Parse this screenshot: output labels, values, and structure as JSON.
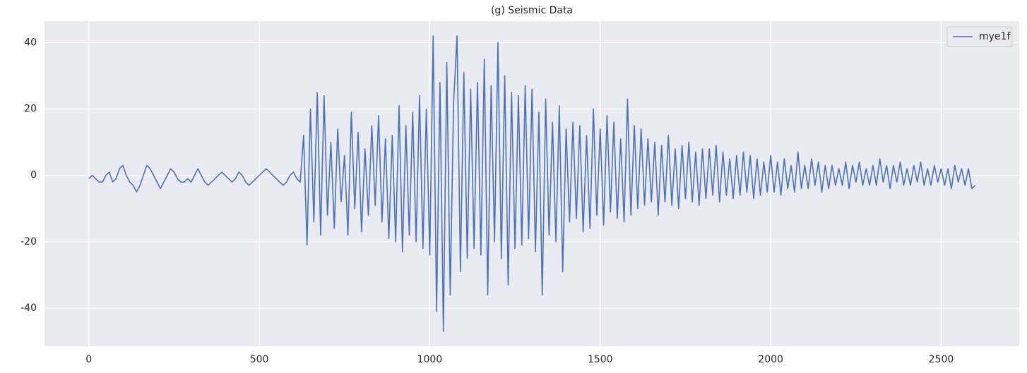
{
  "chart_data": {
    "type": "line",
    "title": "(g) Seismic Data",
    "x": [
      0,
      10,
      20,
      30,
      40,
      50,
      60,
      70,
      80,
      90,
      100,
      110,
      120,
      130,
      140,
      150,
      160,
      170,
      180,
      190,
      200,
      210,
      220,
      230,
      240,
      250,
      260,
      270,
      280,
      290,
      300,
      310,
      320,
      330,
      340,
      350,
      360,
      370,
      380,
      390,
      400,
      410,
      420,
      430,
      440,
      450,
      460,
      470,
      480,
      490,
      500,
      510,
      520,
      530,
      540,
      550,
      560,
      570,
      580,
      590,
      600,
      610,
      620,
      630,
      640,
      650,
      660,
      670,
      680,
      690,
      700,
      710,
      720,
      730,
      740,
      750,
      760,
      770,
      780,
      790,
      800,
      810,
      820,
      830,
      840,
      850,
      860,
      870,
      880,
      890,
      900,
      910,
      920,
      930,
      940,
      950,
      960,
      970,
      980,
      990,
      1000,
      1010,
      1020,
      1030,
      1040,
      1050,
      1060,
      1070,
      1080,
      1090,
      1100,
      1110,
      1120,
      1130,
      1140,
      1150,
      1160,
      1170,
      1180,
      1190,
      1200,
      1210,
      1220,
      1230,
      1240,
      1250,
      1260,
      1270,
      1280,
      1290,
      1300,
      1310,
      1320,
      1330,
      1340,
      1350,
      1360,
      1370,
      1380,
      1390,
      1400,
      1410,
      1420,
      1430,
      1440,
      1450,
      1460,
      1470,
      1480,
      1490,
      1500,
      1510,
      1520,
      1530,
      1540,
      1550,
      1560,
      1570,
      1580,
      1590,
      1600,
      1610,
      1620,
      1630,
      1640,
      1650,
      1660,
      1670,
      1680,
      1690,
      1700,
      1710,
      1720,
      1730,
      1740,
      1750,
      1760,
      1770,
      1780,
      1790,
      1800,
      1810,
      1820,
      1830,
      1840,
      1850,
      1860,
      1870,
      1880,
      1890,
      1900,
      1910,
      1920,
      1930,
      1940,
      1950,
      1960,
      1970,
      1980,
      1990,
      2000,
      2010,
      2020,
      2030,
      2040,
      2050,
      2060,
      2070,
      2080,
      2090,
      2100,
      2110,
      2120,
      2130,
      2140,
      2150,
      2160,
      2170,
      2180,
      2190,
      2200,
      2210,
      2220,
      2230,
      2240,
      2250,
      2260,
      2270,
      2280,
      2290,
      2300,
      2310,
      2320,
      2330,
      2340,
      2350,
      2360,
      2370,
      2380,
      2390,
      2400,
      2410,
      2420,
      2430,
      2440,
      2450,
      2460,
      2470,
      2480,
      2490,
      2500,
      2510,
      2520,
      2530,
      2540,
      2550,
      2560,
      2570,
      2580,
      2590,
      2600
    ],
    "series": [
      {
        "name": "mye1f",
        "color": "#4c72b0",
        "values": [
          -1,
          0,
          -1,
          -2,
          -2,
          0,
          1,
          -2,
          -1,
          2,
          3,
          0,
          -2,
          -3,
          -5,
          -3,
          0,
          3,
          2,
          0,
          -2,
          -4,
          -2,
          0,
          2,
          1,
          -1,
          -2,
          -2,
          -1,
          -2,
          0,
          2,
          0,
          -2,
          -3,
          -2,
          -1,
          0,
          1,
          0,
          -1,
          -2,
          -1,
          1,
          0,
          -2,
          -3,
          -2,
          -1,
          0,
          1,
          2,
          1,
          0,
          -1,
          -2,
          -3,
          -2,
          0,
          1,
          -1,
          -2,
          12,
          -21,
          20,
          -14,
          25,
          -18,
          24,
          -12,
          10,
          -16,
          14,
          -8,
          6,
          -18,
          19,
          -10,
          13,
          -17,
          8,
          -12,
          15,
          -9,
          18,
          -14,
          11,
          -19,
          12,
          -20,
          21,
          -23,
          15,
          -18,
          19,
          -20,
          24,
          -22,
          20,
          -24,
          42,
          -41,
          28,
          -47,
          34,
          -36,
          22,
          42,
          -29,
          31,
          -25,
          26,
          -22,
          28,
          -24,
          35,
          -36,
          27,
          -20,
          40,
          -25,
          30,
          -33,
          25,
          -22,
          24,
          -21,
          27,
          -19,
          26,
          -23,
          19,
          -36,
          23,
          -18,
          16,
          -20,
          21,
          -29,
          14,
          -14,
          16,
          -13,
          15,
          -17,
          12,
          -16,
          20,
          -12,
          14,
          -15,
          18,
          -11,
          16,
          -13,
          11,
          -14,
          23,
          -12,
          15,
          -10,
          14,
          -9,
          11,
          -8,
          10,
          -12,
          9,
          -8,
          12,
          -9,
          8,
          -10,
          9,
          -7,
          10,
          -8,
          7,
          -9,
          8,
          -7,
          8,
          -6,
          9,
          -8,
          7,
          -6,
          5,
          -7,
          6,
          -6,
          7,
          -5,
          6,
          -7,
          5,
          -6,
          4,
          -5,
          6,
          -5,
          4,
          -6,
          5,
          -4,
          3,
          -5,
          7,
          -4,
          3,
          -4,
          5,
          -3,
          4,
          -5,
          3,
          -4,
          3,
          -3,
          2,
          -3,
          4,
          -4,
          3,
          -2,
          4,
          -3,
          2,
          -3,
          3,
          -3,
          5,
          -2,
          3,
          -4,
          3,
          -2,
          4,
          -3,
          2,
          -3,
          3,
          -2,
          4,
          -3,
          2,
          -3,
          3,
          -2,
          2,
          -3,
          2,
          -4,
          3,
          -2,
          2,
          -3,
          2,
          -4,
          -3
        ]
      }
    ],
    "xlim": [
      -130,
      2729
    ],
    "xticks": [
      0,
      500,
      1000,
      1500,
      2000,
      2500
    ],
    "ylim": [
      -51.45,
      46.45
    ],
    "yticks": [
      -40,
      -20,
      0,
      20,
      40
    ],
    "grid": true,
    "legend": "upper right"
  }
}
